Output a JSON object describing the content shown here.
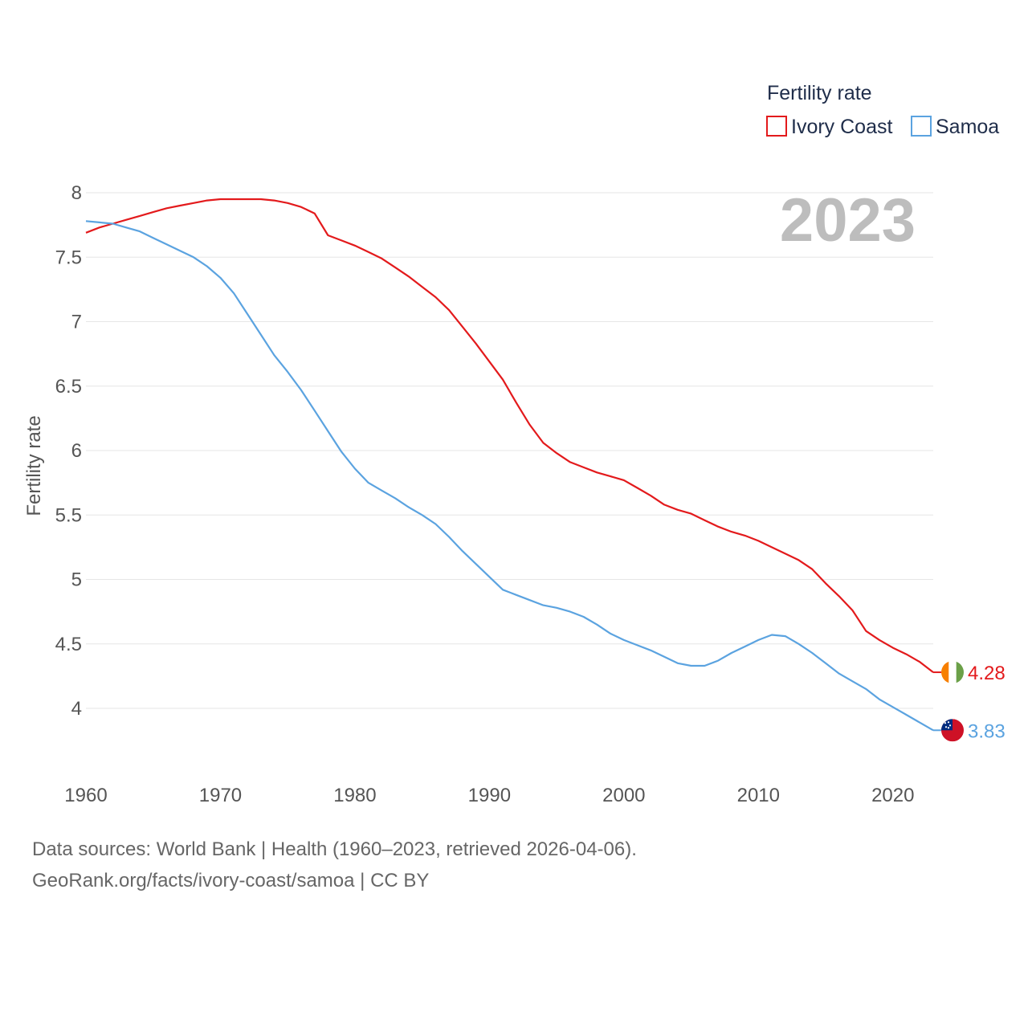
{
  "chart_data": {
    "type": "line",
    "title": "",
    "ylabel": "Fertility rate",
    "xlabel": "",
    "xlim": [
      1960,
      2023
    ],
    "ylim": [
      3.6,
      8.0
    ],
    "x_ticks": [
      1960,
      1970,
      1980,
      1990,
      2000,
      2010,
      2020
    ],
    "y_ticks": [
      4,
      4.5,
      5,
      5.5,
      6,
      6.5,
      7,
      7.5,
      8
    ],
    "grid": true,
    "legend_title": "Fertility rate",
    "legend_position": "top-right",
    "current_year": "2023",
    "x": [
      1960,
      1961,
      1962,
      1963,
      1964,
      1965,
      1966,
      1967,
      1968,
      1969,
      1970,
      1971,
      1972,
      1973,
      1974,
      1975,
      1976,
      1977,
      1978,
      1979,
      1980,
      1981,
      1982,
      1983,
      1984,
      1985,
      1986,
      1987,
      1988,
      1989,
      1990,
      1991,
      1992,
      1993,
      1994,
      1995,
      1996,
      1997,
      1998,
      1999,
      2000,
      2001,
      2002,
      2003,
      2004,
      2005,
      2006,
      2007,
      2008,
      2009,
      2010,
      2011,
      2012,
      2013,
      2014,
      2015,
      2016,
      2017,
      2018,
      2019,
      2020,
      2021,
      2022,
      2023
    ],
    "series": [
      {
        "name": "Ivory Coast",
        "color": "#e31a1c",
        "end_label": "4.28",
        "flag": "ivory-coast-flag-icon",
        "values": [
          7.69,
          7.73,
          7.76,
          7.79,
          7.82,
          7.85,
          7.88,
          7.9,
          7.92,
          7.94,
          7.95,
          7.95,
          7.95,
          7.95,
          7.94,
          7.92,
          7.89,
          7.84,
          7.67,
          7.63,
          7.59,
          7.54,
          7.49,
          7.42,
          7.35,
          7.27,
          7.19,
          7.09,
          6.96,
          6.83,
          6.69,
          6.55,
          6.37,
          6.2,
          6.06,
          5.98,
          5.91,
          5.87,
          5.83,
          5.8,
          5.77,
          5.71,
          5.65,
          5.58,
          5.54,
          5.51,
          5.46,
          5.41,
          5.37,
          5.34,
          5.3,
          5.25,
          5.2,
          5.15,
          5.08,
          4.97,
          4.87,
          4.76,
          4.6,
          4.53,
          4.47,
          4.42,
          4.36,
          4.28
        ]
      },
      {
        "name": "Samoa",
        "color": "#5ba3e0",
        "end_label": "3.83",
        "flag": "samoa-flag-icon",
        "values": [
          7.78,
          7.77,
          7.76,
          7.73,
          7.7,
          7.65,
          7.6,
          7.55,
          7.5,
          7.43,
          7.34,
          7.22,
          7.06,
          6.9,
          6.74,
          6.61,
          6.47,
          6.31,
          6.15,
          5.99,
          5.86,
          5.75,
          5.69,
          5.63,
          5.56,
          5.5,
          5.43,
          5.33,
          5.22,
          5.12,
          5.02,
          4.92,
          4.88,
          4.84,
          4.8,
          4.78,
          4.75,
          4.71,
          4.65,
          4.58,
          4.53,
          4.49,
          4.45,
          4.4,
          4.35,
          4.33,
          4.33,
          4.37,
          4.43,
          4.48,
          4.53,
          4.57,
          4.56,
          4.5,
          4.43,
          4.35,
          4.27,
          4.21,
          4.15,
          4.07,
          4.01,
          3.95,
          3.89,
          3.83
        ]
      }
    ]
  },
  "footer": {
    "source": "Data sources: World Bank | Health (1960–2023, retrieved 2026-04-06).",
    "link": "GeoRank.org/facts/ivory-coast/samoa | CC BY"
  }
}
